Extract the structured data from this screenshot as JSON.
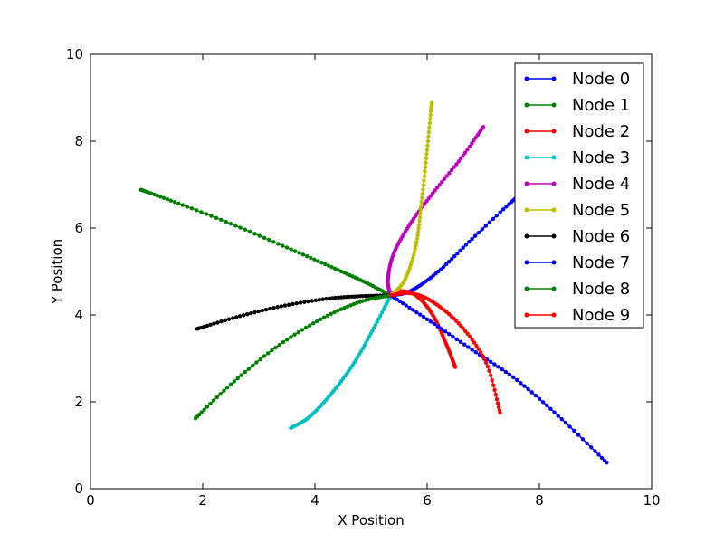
{
  "chart_data": {
    "type": "line",
    "title": "",
    "xlabel": "X Position",
    "ylabel": "Y Position",
    "xlim": [
      0,
      10
    ],
    "ylim": [
      0,
      10
    ],
    "xticks": [
      "0",
      "2",
      "4",
      "6",
      "8",
      "10"
    ],
    "yticks": [
      "0",
      "2",
      "4",
      "6",
      "8",
      "10"
    ],
    "grid": false,
    "legend_position": "top-right",
    "series": [
      {
        "name": "Node 0",
        "color": "#0000ff",
        "points": [
          [
            5.35,
            4.45
          ],
          [
            5.7,
            4.55
          ],
          [
            6.2,
            5.0
          ],
          [
            6.8,
            5.75
          ],
          [
            7.5,
            6.6
          ],
          [
            7.7,
            6.8
          ]
        ]
      },
      {
        "name": "Node 1",
        "color": "#008000",
        "points": [
          [
            0.9,
            6.88
          ],
          [
            1.5,
            6.6
          ],
          [
            2.5,
            6.1
          ],
          [
            3.5,
            5.55
          ],
          [
            4.3,
            5.1
          ],
          [
            4.9,
            4.75
          ],
          [
            5.35,
            4.45
          ]
        ]
      },
      {
        "name": "Node 2",
        "color": "#ff0000",
        "points": [
          [
            5.35,
            4.45
          ],
          [
            5.5,
            4.55
          ],
          [
            5.8,
            4.45
          ],
          [
            6.1,
            4.0
          ],
          [
            6.35,
            3.3
          ],
          [
            6.5,
            2.8
          ]
        ]
      },
      {
        "name": "Node 3",
        "color": "#00bfbf",
        "points": [
          [
            3.57,
            1.4
          ],
          [
            3.9,
            1.65
          ],
          [
            4.3,
            2.2
          ],
          [
            4.7,
            2.9
          ],
          [
            5.05,
            3.7
          ],
          [
            5.35,
            4.45
          ]
        ]
      },
      {
        "name": "Node 4",
        "color": "#bf00bf",
        "points": [
          [
            5.35,
            4.45
          ],
          [
            5.3,
            4.8
          ],
          [
            5.4,
            5.4
          ],
          [
            5.7,
            6.1
          ],
          [
            6.1,
            6.8
          ],
          [
            6.6,
            7.6
          ],
          [
            7.0,
            8.33
          ]
        ]
      },
      {
        "name": "Node 5",
        "color": "#bfbf00",
        "points": [
          [
            5.35,
            4.45
          ],
          [
            5.6,
            4.8
          ],
          [
            5.8,
            5.6
          ],
          [
            5.9,
            6.6
          ],
          [
            6.0,
            7.8
          ],
          [
            6.08,
            8.88
          ]
        ]
      },
      {
        "name": "Node 6",
        "color": "#000000",
        "points": [
          [
            1.9,
            3.68
          ],
          [
            2.6,
            3.95
          ],
          [
            3.4,
            4.2
          ],
          [
            4.2,
            4.37
          ],
          [
            4.8,
            4.43
          ],
          [
            5.35,
            4.45
          ]
        ]
      },
      {
        "name": "Node 7",
        "color": "#0000ff",
        "points": [
          [
            5.35,
            4.45
          ],
          [
            6.0,
            3.9
          ],
          [
            6.8,
            3.2
          ],
          [
            7.6,
            2.5
          ],
          [
            8.4,
            1.6
          ],
          [
            9.2,
            0.6
          ]
        ]
      },
      {
        "name": "Node 8",
        "color": "#008000",
        "points": [
          [
            1.87,
            1.62
          ],
          [
            2.5,
            2.4
          ],
          [
            3.3,
            3.25
          ],
          [
            4.1,
            3.9
          ],
          [
            4.8,
            4.3
          ],
          [
            5.35,
            4.45
          ]
        ]
      },
      {
        "name": "Node 9",
        "color": "#ff0000",
        "points": [
          [
            5.35,
            4.45
          ],
          [
            5.7,
            4.5
          ],
          [
            6.1,
            4.3
          ],
          [
            6.6,
            3.75
          ],
          [
            7.05,
            2.9
          ],
          [
            7.3,
            1.75
          ]
        ]
      }
    ]
  }
}
